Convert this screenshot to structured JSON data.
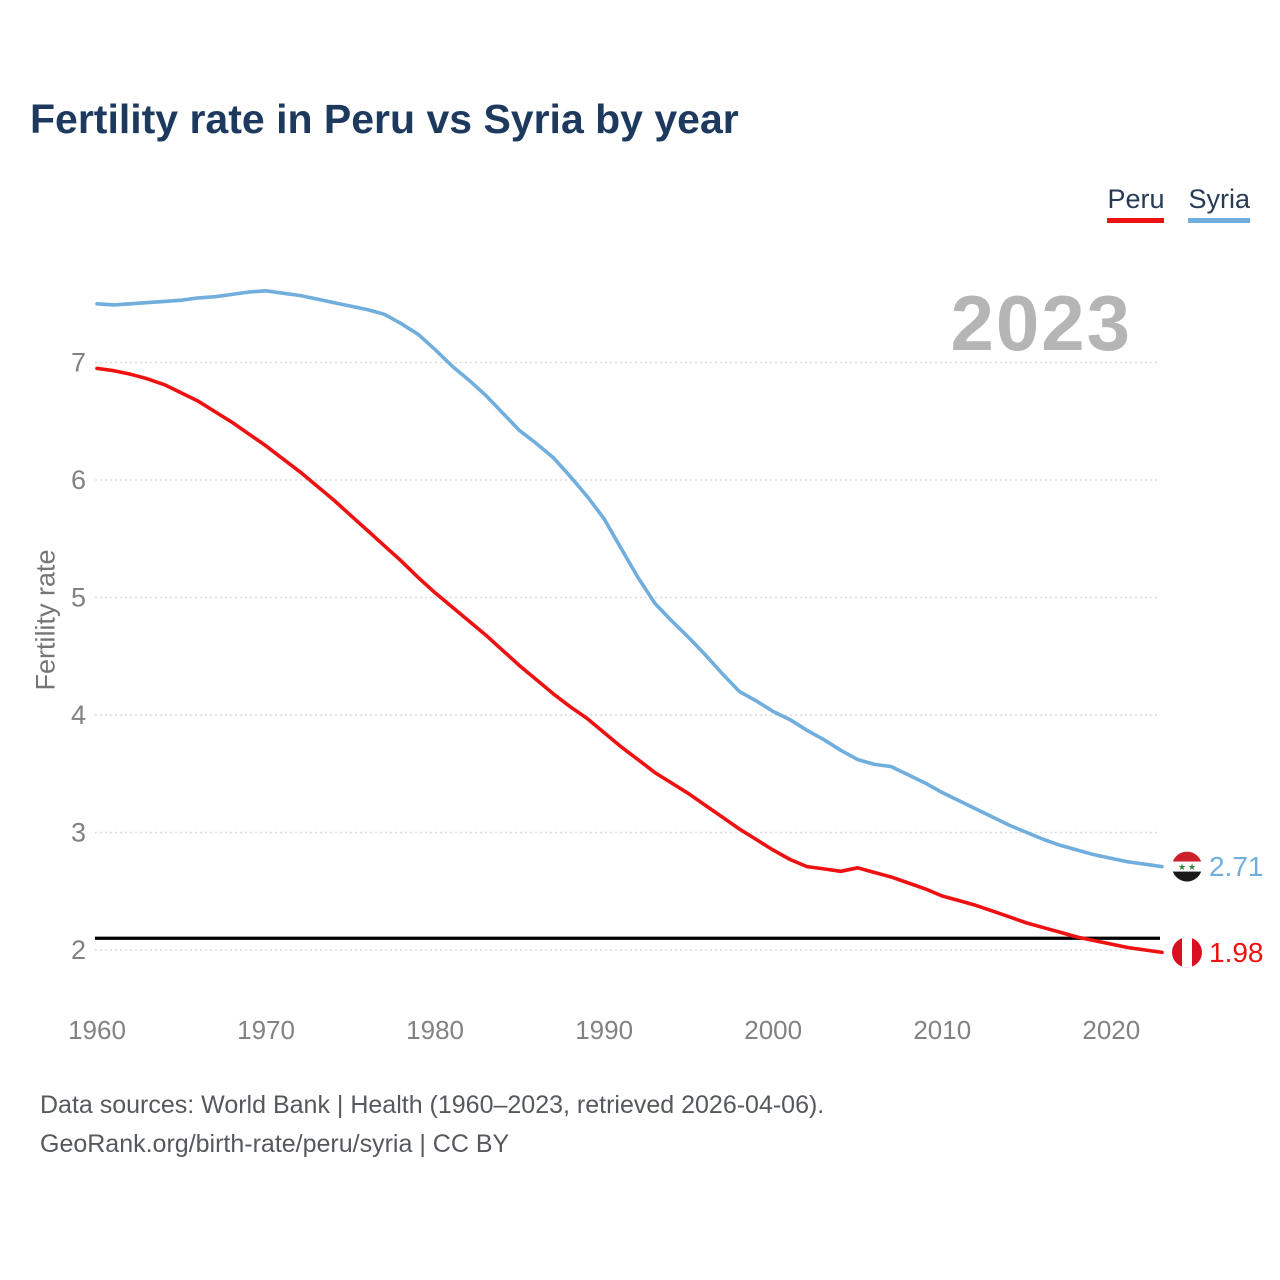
{
  "header": {
    "title": "Fertility rate in Peru vs Syria by year"
  },
  "legend": {
    "items": [
      {
        "label": "Peru",
        "color": "#ee1111"
      },
      {
        "label": "Syria",
        "color": "#70aede"
      }
    ]
  },
  "watermark": "2023",
  "chart_data": {
    "type": "line",
    "title": "Fertility rate in Peru vs Syria by year",
    "xlabel": "",
    "ylabel": "Fertility rate",
    "xlim": [
      1960,
      2023
    ],
    "ylim": [
      1.9,
      7.8
    ],
    "grid": true,
    "legend_position": "top-right",
    "x_ticks": [
      1960,
      1970,
      1980,
      1990,
      2000,
      2010,
      2020
    ],
    "y_ticks": [
      7,
      6,
      5,
      4,
      3,
      2
    ],
    "reference_line": {
      "value": 2.1,
      "color": "#000000"
    },
    "x": [
      1960,
      1961,
      1962,
      1963,
      1964,
      1965,
      1966,
      1967,
      1968,
      1969,
      1970,
      1971,
      1972,
      1973,
      1974,
      1975,
      1976,
      1977,
      1978,
      1979,
      1980,
      1981,
      1982,
      1983,
      1984,
      1985,
      1986,
      1987,
      1988,
      1989,
      1990,
      1991,
      1992,
      1993,
      1994,
      1995,
      1996,
      1997,
      1998,
      1999,
      2000,
      2001,
      2002,
      2003,
      2004,
      2005,
      2006,
      2007,
      2008,
      2009,
      2010,
      2011,
      2012,
      2013,
      2014,
      2015,
      2016,
      2017,
      2018,
      2019,
      2020,
      2021,
      2022,
      2023
    ],
    "series": [
      {
        "name": "Peru",
        "color": "#ee1111",
        "flag": "peru",
        "end_label": "1.98",
        "final_value": 1.98,
        "values": [
          6.95,
          6.93,
          6.9,
          6.86,
          6.81,
          6.74,
          6.67,
          6.58,
          6.49,
          6.39,
          6.29,
          6.18,
          6.07,
          5.95,
          5.83,
          5.7,
          5.57,
          5.44,
          5.31,
          5.17,
          5.04,
          4.92,
          4.8,
          4.68,
          4.55,
          4.42,
          4.3,
          4.18,
          4.07,
          3.97,
          3.85,
          3.73,
          3.62,
          3.51,
          3.42,
          3.33,
          3.23,
          3.13,
          3.03,
          2.94,
          2.85,
          2.77,
          2.71,
          2.69,
          2.67,
          2.7,
          2.66,
          2.62,
          2.57,
          2.52,
          2.46,
          2.42,
          2.38,
          2.33,
          2.28,
          2.23,
          2.19,
          2.15,
          2.11,
          2.08,
          2.05,
          2.02,
          2.0,
          1.98
        ]
      },
      {
        "name": "Syria",
        "color": "#70aede",
        "flag": "syria",
        "end_label": "2.71",
        "final_value": 2.71,
        "values": [
          7.5,
          7.49,
          7.5,
          7.51,
          7.52,
          7.53,
          7.55,
          7.56,
          7.58,
          7.6,
          7.61,
          7.59,
          7.57,
          7.54,
          7.51,
          7.48,
          7.45,
          7.41,
          7.33,
          7.24,
          7.11,
          6.97,
          6.85,
          6.72,
          6.57,
          6.42,
          6.31,
          6.19,
          6.03,
          5.86,
          5.67,
          5.42,
          5.17,
          4.95,
          4.8,
          4.66,
          4.51,
          4.35,
          4.2,
          4.12,
          4.03,
          3.96,
          3.87,
          3.79,
          3.7,
          3.62,
          3.58,
          3.56,
          3.49,
          3.42,
          3.34,
          3.27,
          3.2,
          3.13,
          3.06,
          3.0,
          2.94,
          2.89,
          2.85,
          2.81,
          2.78,
          2.75,
          2.73,
          2.71
        ]
      }
    ],
    "flag_colors": {
      "peru": {
        "red": "#d91023",
        "white": "#ffffff"
      },
      "syria": {
        "red": "#cd2129",
        "white": "#ffffff",
        "black": "#1a1a1a",
        "star_green": "#2e8b3a"
      }
    }
  },
  "footer": {
    "line1": "Data sources: World Bank | Health (1960–2023, retrieved 2026-04-06).",
    "line2": "GeoRank.org/birth-rate/peru/syria | CC BY"
  }
}
